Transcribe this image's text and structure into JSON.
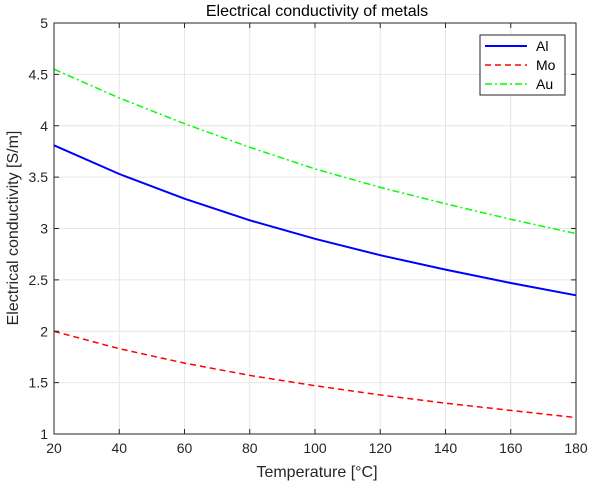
{
  "chart_data": {
    "type": "line",
    "title": "Electrical conductivity of metals",
    "xlabel": "Temperature [°C]",
    "ylabel": "Electrical conductivity [S/m]",
    "xlim": [
      20,
      180
    ],
    "ylim": [
      1,
      5
    ],
    "xticks": [
      20,
      40,
      60,
      80,
      100,
      120,
      140,
      160,
      180
    ],
    "yticks": [
      1,
      1.5,
      2,
      2.5,
      3,
      3.5,
      4,
      4.5,
      5
    ],
    "xtick_labels": [
      "20",
      "40",
      "60",
      "80",
      "100",
      "120",
      "140",
      "160",
      "180"
    ],
    "ytick_labels": [
      "1",
      "1.5",
      "2",
      "2.5",
      "3",
      "3.5",
      "4",
      "4.5",
      "5"
    ],
    "grid": true,
    "legend_position": "top-right",
    "x": [
      20,
      40,
      60,
      80,
      100,
      120,
      140,
      160,
      180
    ],
    "series": [
      {
        "name": "Al",
        "color": "#0000ff",
        "style": "solid",
        "values": [
          3.81,
          3.53,
          3.29,
          3.08,
          2.9,
          2.74,
          2.6,
          2.47,
          2.35
        ]
      },
      {
        "name": "Mo",
        "color": "#ff0000",
        "style": "dashed",
        "values": [
          2.0,
          1.83,
          1.69,
          1.57,
          1.47,
          1.38,
          1.3,
          1.23,
          1.16
        ]
      },
      {
        "name": "Au",
        "color": "#00ff00",
        "style": "dashdot",
        "values": [
          4.55,
          4.27,
          4.02,
          3.79,
          3.58,
          3.4,
          3.24,
          3.09,
          2.95
        ]
      }
    ]
  }
}
